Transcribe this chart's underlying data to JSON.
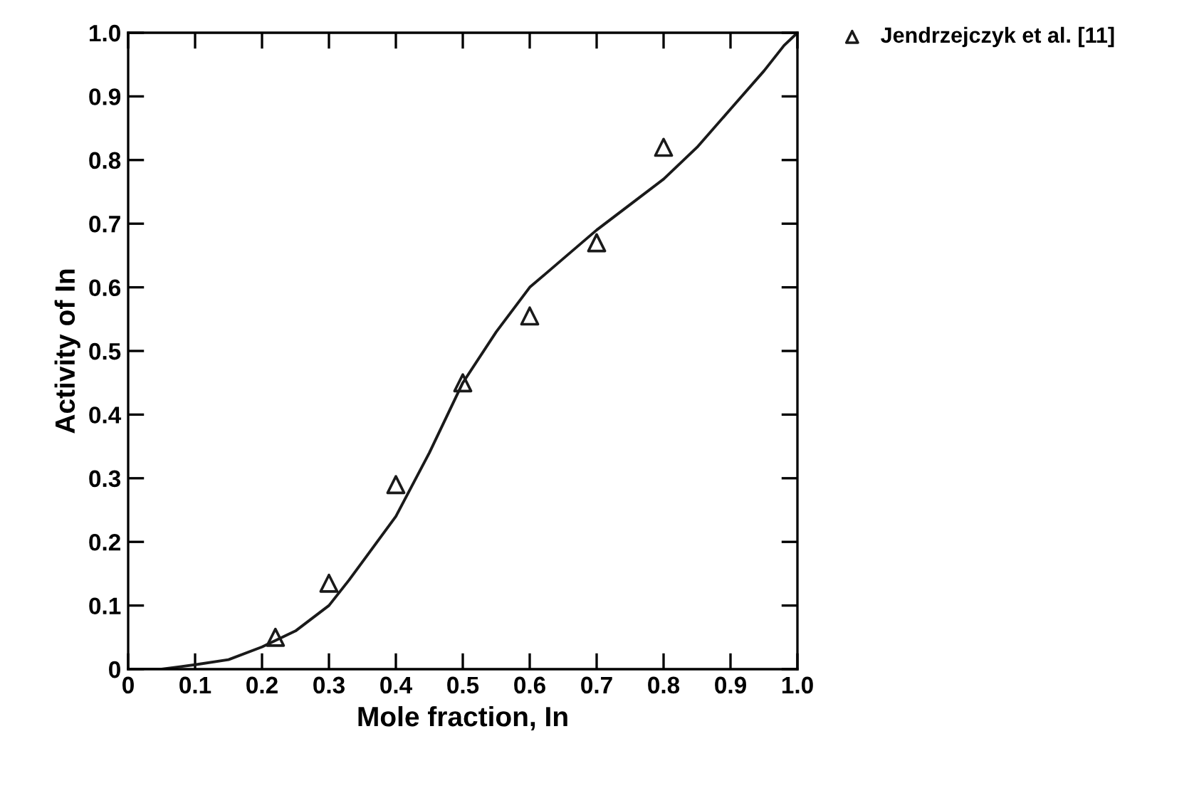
{
  "chart_data": {
    "type": "line",
    "xlabel": "Mole fraction, In",
    "ylabel": "Activity of In",
    "xlim": [
      0,
      1
    ],
    "ylim": [
      0,
      1
    ],
    "xticks": [
      0,
      0.1,
      0.2,
      0.3,
      0.4,
      0.5,
      0.6,
      0.7,
      0.8,
      0.9,
      {
        "value": 1,
        "label": "1.0"
      }
    ],
    "yticks": [
      0,
      0.1,
      0.2,
      0.3,
      0.4,
      0.5,
      0.6,
      0.7,
      0.8,
      0.9,
      {
        "value": 1,
        "label": "1.0"
      }
    ],
    "grid": false,
    "legend": "top right",
    "series": [
      {
        "color": "#1a1a1a",
        "marker": "none",
        "line_style": "solid",
        "x": [
          0,
          0.05,
          0.1,
          0.15,
          0.2,
          0.25,
          0.3,
          0.33,
          0.4,
          0.45,
          0.5,
          0.55,
          0.6,
          0.65,
          0.7,
          0.75,
          0.8,
          0.85,
          0.9,
          0.95,
          0.98,
          1.0
        ],
        "values": [
          0,
          0,
          0.007,
          0.015,
          0.035,
          0.06,
          0.1,
          0.14,
          0.24,
          0.34,
          0.45,
          0.53,
          0.6,
          0.645,
          0.69,
          0.73,
          0.77,
          0.82,
          0.88,
          0.94,
          0.98,
          1.0
        ]
      },
      {
        "type": "scatter",
        "name": "Jendrzejczyk et al. [11]",
        "color": "#1a1a1a",
        "marker": "triangle",
        "x": [
          0.22,
          0.3,
          0.4,
          0.5,
          0.6,
          0.7,
          0.8
        ],
        "values": [
          0.05,
          0.135,
          0.29,
          0.45,
          0.555,
          0.67,
          0.82
        ]
      }
    ]
  }
}
